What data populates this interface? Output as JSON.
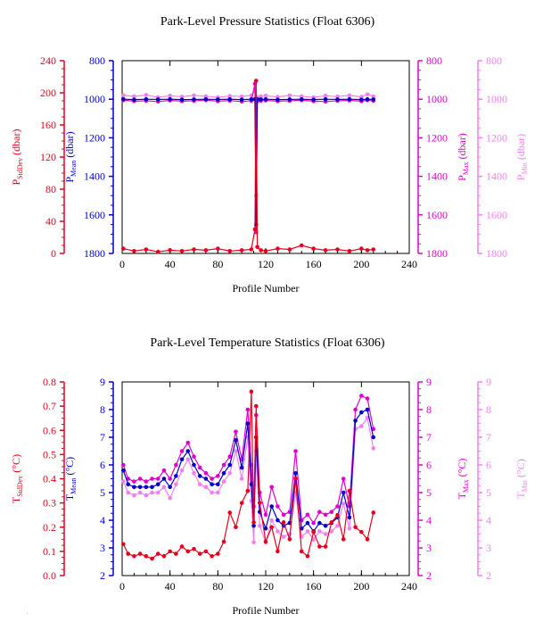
{
  "footnote": "-",
  "chart_data": [
    {
      "type": "line",
      "title": "Park-Level Pressure Statistics (Float 6306)",
      "xlabel": "Profile Number",
      "xlim": [
        0,
        240
      ],
      "xticks": [
        0,
        40,
        80,
        120,
        160,
        200,
        240
      ],
      "grid": false,
      "axes": [
        {
          "id": "stddev",
          "label_main": "P",
          "label_sub": "StdDev",
          "label_unit": " (dbar)",
          "color": "#e8001c",
          "lim": [
            0,
            240
          ],
          "ticks": [
            0,
            40,
            80,
            120,
            160,
            200,
            240
          ],
          "inverted": false,
          "side": "left"
        },
        {
          "id": "mean",
          "label_main": "P",
          "label_sub": "Mean",
          "label_unit": " (dbar)",
          "color": "#0000cc",
          "lim": [
            800,
            1800
          ],
          "ticks": [
            800,
            1000,
            1200,
            1400,
            1600,
            1800
          ],
          "inverted": true,
          "side": "left"
        },
        {
          "id": "max",
          "label_main": "P",
          "label_sub": "Max",
          "label_unit": " (dbar)",
          "color": "#e000d0",
          "lim": [
            800,
            1800
          ],
          "ticks": [
            800,
            1000,
            1200,
            1400,
            1600,
            1800
          ],
          "inverted": true,
          "side": "right"
        },
        {
          "id": "min",
          "label_main": "P",
          "label_sub": "Min",
          "label_unit": " (dbar)",
          "color": "#f080f0",
          "lim": [
            800,
            1800
          ],
          "ticks": [
            800,
            1000,
            1200,
            1400,
            1600,
            1800
          ],
          "inverted": true,
          "side": "right"
        }
      ],
      "series": [
        {
          "axis": "min",
          "color": "#f080f0",
          "x": [
            1,
            10,
            20,
            30,
            40,
            50,
            60,
            70,
            80,
            90,
            100,
            108,
            111,
            112,
            113,
            116,
            120,
            130,
            140,
            150,
            160,
            170,
            180,
            190,
            200,
            205,
            210
          ],
          "y": [
            980,
            985,
            978,
            990,
            982,
            987,
            980,
            985,
            990,
            983,
            986,
            980,
            960,
            1500,
            990,
            985,
            982,
            988,
            980,
            985,
            990,
            982,
            986,
            980,
            988,
            975,
            985
          ]
        },
        {
          "axis": "max",
          "color": "#e000d0",
          "x": [
            1,
            10,
            20,
            30,
            40,
            50,
            60,
            70,
            80,
            90,
            100,
            108,
            111,
            112,
            113,
            116,
            120,
            130,
            140,
            150,
            160,
            170,
            180,
            190,
            200,
            205,
            210
          ],
          "y": [
            1005,
            1010,
            1008,
            1012,
            1006,
            1010,
            1008,
            1005,
            1010,
            1007,
            1012,
            1008,
            920,
            1690,
            1010,
            1008,
            1006,
            1010,
            1008,
            1005,
            1010,
            1012,
            1008,
            1006,
            1010,
            1005,
            1008
          ]
        },
        {
          "axis": "mean",
          "color": "#0000cc",
          "x": [
            1,
            10,
            20,
            30,
            40,
            50,
            60,
            70,
            80,
            90,
            100,
            108,
            111,
            112,
            113,
            116,
            120,
            130,
            140,
            150,
            160,
            170,
            180,
            190,
            200,
            205,
            210
          ],
          "y": [
            1000,
            1002,
            1000,
            1001,
            1000,
            1002,
            1001,
            1000,
            1001,
            1000,
            1002,
            1000,
            1000,
            1650,
            1000,
            1001,
            1000,
            1002,
            1001,
            1000,
            1002,
            1000,
            1001,
            1000,
            1002,
            1000,
            1001
          ]
        },
        {
          "axis": "stddev",
          "color": "#e8001c",
          "x": [
            1,
            10,
            20,
            30,
            40,
            50,
            60,
            70,
            80,
            90,
            100,
            108,
            111,
            112,
            113,
            116,
            120,
            130,
            140,
            150,
            160,
            170,
            180,
            190,
            200,
            205,
            210
          ],
          "y": [
            6,
            3,
            5,
            2,
            4,
            3,
            5,
            4,
            6,
            3,
            4,
            5,
            30,
            215,
            8,
            4,
            3,
            6,
            5,
            10,
            6,
            4,
            5,
            3,
            6,
            4,
            5
          ]
        }
      ]
    },
    {
      "type": "line",
      "title": "Park-Level Temperature Statistics (Float 6306)",
      "xlabel": "Profile Number",
      "xlim": [
        0,
        240
      ],
      "xticks": [
        0,
        40,
        80,
        120,
        160,
        200,
        240
      ],
      "grid": false,
      "axes": [
        {
          "id": "stddev",
          "label_main": "T",
          "label_sub": "StdDev",
          "label_unit": " (°C)",
          "color": "#e8001c",
          "lim": [
            0.0,
            0.8
          ],
          "ticks": [
            "0.0",
            "0.1",
            "0.2",
            "0.3",
            "0.4",
            "0.5",
            "0.6",
            "0.7",
            "0.8"
          ],
          "inverted": false,
          "side": "left"
        },
        {
          "id": "mean",
          "label_main": "T",
          "label_sub": "Mean",
          "label_unit": " (°C)",
          "color": "#0000cc",
          "lim": [
            2,
            9
          ],
          "ticks": [
            2,
            3,
            4,
            5,
            6,
            7,
            8,
            9
          ],
          "inverted": false,
          "side": "left"
        },
        {
          "id": "max",
          "label_main": "T",
          "label_sub": "Max",
          "label_unit": " (°C)",
          "color": "#e000d0",
          "lim": [
            2,
            9
          ],
          "ticks": [
            2,
            3,
            4,
            5,
            6,
            7,
            8,
            9
          ],
          "inverted": false,
          "side": "right"
        },
        {
          "id": "min",
          "label_main": "T",
          "label_sub": "Min",
          "label_unit": " (°C)",
          "color": "#f080f0",
          "lim": [
            2,
            9
          ],
          "ticks": [
            2,
            3,
            4,
            5,
            6,
            7,
            8,
            9
          ],
          "inverted": false,
          "side": "right"
        }
      ],
      "series": [
        {
          "axis": "min",
          "color": "#f080f0",
          "x": [
            1,
            5,
            10,
            15,
            20,
            25,
            30,
            35,
            40,
            45,
            50,
            55,
            60,
            65,
            70,
            75,
            80,
            85,
            90,
            95,
            100,
            105,
            108,
            110,
            112,
            115,
            120,
            125,
            130,
            135,
            140,
            145,
            150,
            155,
            160,
            165,
            170,
            175,
            180,
            185,
            190,
            195,
            200,
            205,
            210
          ],
          "y": [
            5.4,
            5.0,
            4.9,
            5.0,
            4.9,
            5.0,
            5.0,
            5.2,
            4.8,
            5.3,
            5.8,
            6.2,
            5.7,
            5.3,
            5.2,
            5.0,
            5.0,
            5.4,
            5.7,
            6.5,
            5.5,
            7.0,
            4.7,
            3.2,
            6.5,
            3.8,
            3.2,
            4.0,
            3.6,
            3.4,
            3.5,
            5.0,
            3.4,
            3.6,
            3.3,
            3.6,
            3.5,
            3.6,
            3.8,
            4.6,
            3.7,
            7.3,
            7.4,
            7.7,
            6.6
          ]
        },
        {
          "axis": "max",
          "color": "#e000d0",
          "x": [
            1,
            5,
            10,
            15,
            20,
            25,
            30,
            35,
            40,
            45,
            50,
            55,
            60,
            65,
            70,
            75,
            80,
            85,
            90,
            95,
            100,
            105,
            108,
            110,
            112,
            115,
            120,
            125,
            130,
            135,
            140,
            145,
            150,
            155,
            160,
            165,
            170,
            175,
            180,
            185,
            190,
            195,
            200,
            205,
            210
          ],
          "y": [
            6.0,
            5.5,
            5.4,
            5.5,
            5.4,
            5.5,
            5.5,
            5.8,
            5.5,
            6.0,
            6.5,
            6.8,
            6.3,
            5.9,
            5.7,
            5.5,
            5.6,
            6.0,
            6.3,
            7.2,
            6.2,
            8.0,
            6.0,
            4.5,
            7.8,
            5.0,
            4.2,
            5.2,
            4.5,
            4.2,
            4.3,
            6.5,
            4.0,
            4.2,
            3.9,
            4.3,
            4.2,
            4.3,
            4.5,
            5.5,
            4.5,
            8.0,
            8.5,
            8.4,
            7.3
          ]
        },
        {
          "axis": "mean",
          "color": "#0000cc",
          "x": [
            1,
            5,
            10,
            15,
            20,
            25,
            30,
            35,
            40,
            45,
            50,
            55,
            60,
            65,
            70,
            75,
            80,
            85,
            90,
            95,
            100,
            105,
            108,
            110,
            112,
            115,
            120,
            125,
            130,
            135,
            140,
            145,
            150,
            155,
            160,
            165,
            170,
            175,
            180,
            185,
            190,
            195,
            200,
            205,
            210
          ],
          "y": [
            5.8,
            5.3,
            5.2,
            5.2,
            5.2,
            5.2,
            5.3,
            5.5,
            5.2,
            5.6,
            6.2,
            6.5,
            6.0,
            5.6,
            5.5,
            5.3,
            5.3,
            5.7,
            6.0,
            6.9,
            5.9,
            7.5,
            5.3,
            3.8,
            7.0,
            4.3,
            3.7,
            4.5,
            4.0,
            3.8,
            3.9,
            5.7,
            3.7,
            3.9,
            3.6,
            3.9,
            3.8,
            3.9,
            4.1,
            5.0,
            4.1,
            7.6,
            7.9,
            8.0,
            7.0
          ]
        },
        {
          "axis": "stddev",
          "color": "#e8001c",
          "x": [
            1,
            5,
            10,
            15,
            20,
            25,
            30,
            35,
            40,
            45,
            50,
            55,
            60,
            65,
            70,
            75,
            80,
            85,
            90,
            95,
            100,
            105,
            108,
            110,
            112,
            115,
            120,
            125,
            130,
            135,
            140,
            145,
            150,
            155,
            160,
            165,
            170,
            175,
            180,
            185,
            190,
            195,
            200,
            205,
            210
          ],
          "y": [
            0.13,
            0.09,
            0.08,
            0.09,
            0.08,
            0.07,
            0.09,
            0.08,
            0.1,
            0.09,
            0.12,
            0.1,
            0.11,
            0.09,
            0.1,
            0.08,
            0.09,
            0.14,
            0.26,
            0.2,
            0.3,
            0.35,
            0.76,
            0.22,
            0.7,
            0.3,
            0.14,
            0.2,
            0.1,
            0.22,
            0.15,
            0.4,
            0.1,
            0.08,
            0.18,
            0.12,
            0.12,
            0.22,
            0.25,
            0.15,
            0.35,
            0.2,
            0.18,
            0.15,
            0.26
          ]
        }
      ]
    }
  ]
}
